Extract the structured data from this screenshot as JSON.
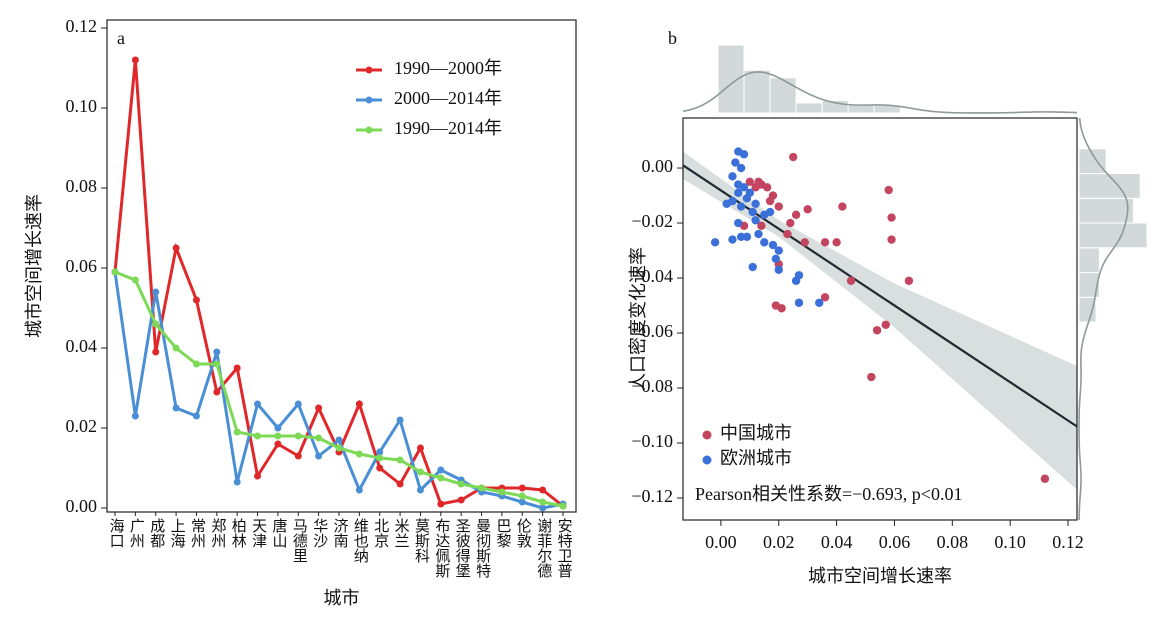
{
  "chart_data": [
    {
      "type": "line",
      "label": "a",
      "xlabel": "城市",
      "ylabel": "城市空间增长速率",
      "categories": [
        "海口",
        "广州",
        "成都",
        "上海",
        "常州",
        "郑州",
        "柏林",
        "天津",
        "唐山",
        "马德里",
        "华沙",
        "济南",
        "维也纳",
        "北京",
        "米兰",
        "莫斯科",
        "布达佩斯",
        "圣彼得堡",
        "曼彻斯特",
        "巴黎",
        "伦敦",
        "谢菲尔德",
        "安特卫普"
      ],
      "ylim": [
        -0.001,
        0.122
      ],
      "yticks": [
        {
          "value": 0,
          "label": "0.00"
        },
        0.02,
        0.04,
        0.06,
        0.08,
        {
          "value": 0.1,
          "label": "0.10"
        },
        0.12
      ],
      "series": [
        {
          "name": "1990—2000年",
          "color": "#e0282a",
          "values": [
            0.059,
            0.112,
            0.039,
            0.065,
            0.052,
            0.029,
            0.035,
            0.008,
            0.016,
            0.013,
            0.025,
            0.014,
            0.026,
            0.01,
            0.006,
            0.015,
            0.001,
            0.002,
            0.005,
            0.005,
            0.005,
            0.0045,
            0.0005
          ]
        },
        {
          "name": "2000—2014年",
          "color": "#4a8fd6",
          "values": [
            0.059,
            0.023,
            0.054,
            0.025,
            0.023,
            0.039,
            0.0065,
            0.026,
            0.02,
            0.026,
            0.013,
            0.017,
            0.0045,
            0.014,
            0.022,
            0.0045,
            0.0095,
            0.007,
            0.004,
            0.003,
            0.0015,
            0.0,
            0.001
          ]
        },
        {
          "name": "1990—2014年",
          "color": "#7ed957",
          "values": [
            0.059,
            0.057,
            0.046,
            0.04,
            0.036,
            0.036,
            0.019,
            0.018,
            0.018,
            0.018,
            0.0175,
            0.015,
            0.0135,
            0.0125,
            0.012,
            0.009,
            0.0075,
            0.006,
            0.005,
            0.004,
            0.003,
            0.0015,
            0.0005
          ]
        }
      ]
    },
    {
      "type": "scatter",
      "label": "b",
      "xlabel": "城市空间增长速率",
      "ylabel": "人口密度变化速率",
      "annotation": "Pearson相关性系数=−0.693, p<0.01",
      "xlim": [
        -0.0131,
        0.1231
      ],
      "ylim": [
        -0.128,
        0.0182
      ],
      "xticks": [
        {
          "value": 0,
          "label": "0.00"
        },
        0.02,
        0.04,
        0.06,
        0.08,
        {
          "value": 0.1,
          "label": "0.10"
        },
        0.12
      ],
      "yticks": [
        {
          "value": 0,
          "label": "0.00"
        },
        {
          "value": -0.02,
          "label": "−0.02"
        },
        {
          "value": -0.04,
          "label": "−0.04"
        },
        {
          "value": -0.06,
          "label": "−0.06"
        },
        {
          "value": -0.08,
          "label": "−0.08"
        },
        {
          "value": -0.1,
          "label": "−0.10"
        },
        {
          "value": -0.12,
          "label": "−0.12"
        }
      ],
      "series": [
        {
          "name": "中国城市",
          "color": "#c4455f",
          "x": [
            0.013,
            0.014,
            0.016,
            0.018,
            0.01,
            0.012,
            0.017,
            0.02,
            0.025,
            0.026,
            0.024,
            0.023,
            0.03,
            0.042,
            0.058,
            0.059,
            0.059,
            0.036,
            0.04,
            0.029,
            0.045,
            0.065,
            0.036,
            0.019,
            0.021,
            0.057,
            0.054,
            0.052,
            0.112,
            0.02,
            0.014,
            0.008
          ],
          "values": [
            -0.005,
            -0.006,
            -0.007,
            -0.01,
            -0.005,
            -0.007,
            -0.012,
            -0.014,
            0.004,
            -0.017,
            -0.02,
            -0.024,
            -0.015,
            -0.014,
            -0.008,
            -0.018,
            -0.026,
            -0.027,
            -0.027,
            -0.027,
            -0.041,
            -0.041,
            -0.047,
            -0.05,
            -0.051,
            -0.057,
            -0.059,
            -0.076,
            -0.113,
            -0.035,
            -0.021,
            -0.021
          ]
        },
        {
          "name": "欧洲城市",
          "color": "#3a70d8",
          "x": [
            0.006,
            0.008,
            0.005,
            0.007,
            0.004,
            0.006,
            0.008,
            0.01,
            0.004,
            0.002,
            0.007,
            0.012,
            0.011,
            0.015,
            0.017,
            0.012,
            0.006,
            0.013,
            0.009,
            0.007,
            0.015,
            0.018,
            -0.002,
            0.004,
            0.02,
            0.019,
            0.027,
            0.026,
            0.011,
            0.02,
            0.027,
            0.034,
            0.006,
            0.009
          ],
          "values": [
            0.006,
            0.005,
            0.002,
            0.0,
            -0.003,
            -0.006,
            -0.007,
            -0.009,
            -0.012,
            -0.013,
            -0.014,
            -0.013,
            -0.016,
            -0.017,
            -0.016,
            -0.019,
            -0.02,
            -0.024,
            -0.025,
            -0.025,
            -0.027,
            -0.028,
            -0.027,
            -0.026,
            -0.03,
            -0.033,
            -0.039,
            -0.041,
            -0.036,
            -0.037,
            -0.049,
            -0.049,
            -0.009,
            -0.011
          ]
        }
      ],
      "fit_line": {
        "x": [
          -0.0131,
          0.1231
        ],
        "y": [
          0.001,
          -0.094
        ]
      },
      "fit_band": {
        "x": [
          -0.0131,
          0.02,
          0.06,
          0.1231
        ],
        "upper": [
          0.006,
          -0.019,
          -0.042,
          -0.072
        ],
        "lower": [
          -0.004,
          -0.025,
          -0.058,
          -0.117
        ]
      },
      "hist_x": {
        "bins": [
          -0.001,
          0.008,
          0.017,
          0.026,
          0.035,
          0.044,
          0.053,
          0.062
        ],
        "counts": [
          27,
          17,
          14,
          4,
          5,
          3,
          3
        ]
      },
      "hist_y": {
        "bins": [
          -0.056,
          -0.047,
          -0.038,
          -0.029,
          -0.02,
          -0.011,
          -0.002,
          0.007
        ],
        "counts": [
          5,
          6,
          6,
          20,
          16,
          18,
          8
        ]
      }
    }
  ]
}
